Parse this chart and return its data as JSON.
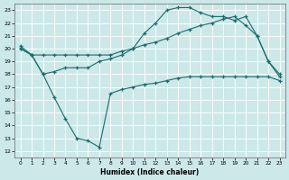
{
  "xlabel": "Humidex (Indice chaleur)",
  "bg_color": "#cce8e8",
  "grid_color": "#d8eded",
  "line_color": "#1a6b6b",
  "xlim": [
    -0.5,
    23.5
  ],
  "ylim": [
    11.5,
    23.5
  ],
  "xticks": [
    0,
    1,
    2,
    3,
    4,
    5,
    6,
    7,
    8,
    9,
    10,
    11,
    12,
    13,
    14,
    15,
    16,
    17,
    18,
    19,
    20,
    21,
    22,
    23
  ],
  "yticks": [
    12,
    13,
    14,
    15,
    16,
    17,
    18,
    19,
    20,
    21,
    22,
    23
  ],
  "line1_x": [
    0,
    1,
    2,
    3,
    4,
    5,
    6,
    7,
    8,
    9,
    10,
    11,
    12,
    13,
    14,
    15,
    16,
    17,
    18,
    19,
    20,
    21,
    22,
    23
  ],
  "line1_y": [
    20.0,
    19.5,
    18.0,
    16.2,
    14.5,
    13.0,
    12.8,
    12.3,
    16.5,
    16.8,
    17.0,
    17.2,
    17.3,
    17.5,
    17.7,
    17.8,
    17.8,
    17.8,
    17.8,
    17.8,
    17.8,
    17.8,
    17.8,
    17.5
  ],
  "line2_x": [
    0,
    1,
    2,
    3,
    4,
    5,
    6,
    7,
    8,
    9,
    10,
    11,
    12,
    13,
    14,
    15,
    16,
    17,
    18,
    19,
    20,
    21,
    22,
    23
  ],
  "line2_y": [
    20.0,
    19.5,
    19.5,
    19.5,
    19.5,
    19.5,
    19.5,
    19.5,
    19.5,
    19.8,
    20.0,
    20.3,
    20.5,
    20.8,
    21.2,
    21.5,
    21.8,
    22.0,
    22.3,
    22.5,
    21.8,
    21.0,
    19.0,
    17.8
  ],
  "line3_x": [
    0,
    1,
    2,
    3,
    4,
    5,
    6,
    7,
    8,
    9,
    10,
    11,
    12,
    13,
    14,
    15,
    16,
    17,
    18,
    19,
    20,
    21,
    22,
    23
  ],
  "line3_y": [
    20.2,
    19.5,
    18.0,
    18.2,
    18.5,
    18.5,
    18.5,
    19.0,
    19.2,
    19.5,
    20.0,
    21.2,
    22.0,
    23.0,
    23.2,
    23.2,
    22.8,
    22.5,
    22.5,
    22.2,
    22.5,
    21.0,
    19.0,
    18.0
  ]
}
